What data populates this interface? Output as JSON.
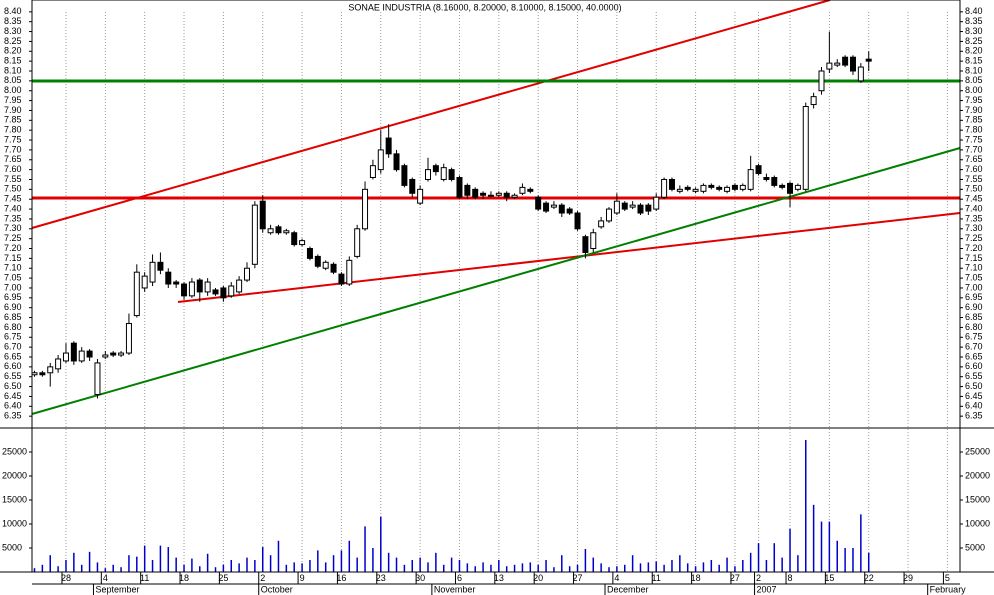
{
  "chart_data": {
    "type": "candlestick",
    "title": "SONAE INDUSTRIA (8.16000, 8.20000, 8.10000, 8.15000, 40.0000)",
    "categories": [
      null,
      null,
      null,
      null,
      "28",
      null,
      null,
      null,
      null,
      "4",
      null,
      null,
      null,
      null,
      "11",
      null,
      null,
      null,
      null,
      "18",
      null,
      null,
      null,
      null,
      "25",
      null,
      null,
      null,
      null,
      "2",
      null,
      null,
      null,
      null,
      "9",
      null,
      null,
      null,
      null,
      "16",
      null,
      null,
      null,
      null,
      "23",
      null,
      null,
      null,
      null,
      "30",
      null,
      null,
      null,
      null,
      "6",
      null,
      null,
      null,
      null,
      "13",
      null,
      null,
      null,
      null,
      "20",
      null,
      null,
      null,
      null,
      "27",
      null,
      null,
      null,
      null,
      "4",
      null,
      null,
      null,
      null,
      "11",
      null,
      null,
      null,
      null,
      "18",
      null,
      null,
      null,
      null,
      "27",
      null,
      null,
      "2",
      null,
      null,
      null,
      "8",
      null,
      null,
      null,
      null,
      "15",
      null,
      null,
      null,
      null,
      "22",
      null,
      null,
      null,
      null,
      "29",
      null,
      null,
      null,
      null,
      "5"
    ],
    "months": [
      "September",
      "October",
      "November",
      "December",
      "2007",
      "February"
    ],
    "open": [
      6.56,
      6.57,
      6.57,
      6.59,
      6.63,
      6.72,
      6.63,
      6.68,
      6.46,
      6.65,
      6.67,
      6.66,
      6.67,
      6.86,
      7.0,
      7.03,
      7.13,
      7.08,
      7.03,
      7.02,
      6.96,
      7.04,
      6.98,
      6.99,
      7.0,
      6.96,
      6.98,
      7.04,
      7.12,
      7.44,
      7.28,
      7.31,
      7.28,
      7.28,
      7.22,
      7.2,
      7.16,
      7.1,
      7.12,
      7.07,
      7.02,
      7.16,
      7.3,
      7.56,
      7.6,
      7.76,
      7.68,
      7.62,
      7.55,
      7.43,
      7.55,
      7.62,
      7.55,
      7.6,
      7.56,
      7.52,
      7.5,
      7.48,
      7.47,
      7.47,
      7.48,
      7.46,
      7.48,
      7.5,
      7.46,
      7.43,
      7.41,
      7.42,
      7.4,
      7.38,
      7.26,
      7.2,
      7.31,
      7.34,
      7.38,
      7.43,
      7.41,
      7.42,
      7.42,
      7.4,
      7.46,
      7.55,
      7.49,
      7.51,
      7.49,
      7.49,
      7.52,
      7.51,
      7.49,
      7.52,
      7.5,
      7.5,
      7.62,
      7.56,
      7.56,
      7.52,
      7.53,
      7.5,
      7.5,
      7.93,
      8.0,
      8.11,
      8.13,
      8.17,
      8.17,
      8.05,
      8.16,
      null,
      null,
      null,
      null,
      null,
      null,
      null,
      null,
      null,
      null
    ],
    "high": [
      6.58,
      6.58,
      6.62,
      6.66,
      6.72,
      6.73,
      6.7,
      6.69,
      6.64,
      6.68,
      6.68,
      6.68,
      6.87,
      7.12,
      7.08,
      7.17,
      7.18,
      7.1,
      7.04,
      7.03,
      7.05,
      7.05,
      7.05,
      7.0,
      7.01,
      7.03,
      7.06,
      7.13,
      7.44,
      7.47,
      7.32,
      7.32,
      7.3,
      7.29,
      7.25,
      7.21,
      7.17,
      7.14,
      7.13,
      7.08,
      7.16,
      7.32,
      7.54,
      7.65,
      7.8,
      7.83,
      7.7,
      7.63,
      7.56,
      7.52,
      7.66,
      7.63,
      7.63,
      7.61,
      7.57,
      7.53,
      7.51,
      7.49,
      7.49,
      7.49,
      7.49,
      7.48,
      7.53,
      7.51,
      7.47,
      7.44,
      7.44,
      7.43,
      7.41,
      7.39,
      7.27,
      7.3,
      7.36,
      7.41,
      7.48,
      7.44,
      7.44,
      7.43,
      7.43,
      7.48,
      7.56,
      7.56,
      7.52,
      7.52,
      7.51,
      7.53,
      7.53,
      7.52,
      7.52,
      7.53,
      7.53,
      7.67,
      7.63,
      7.58,
      7.57,
      7.53,
      7.54,
      7.53,
      7.94,
      7.99,
      8.12,
      8.3,
      8.16,
      8.18,
      8.18,
      8.14,
      8.2,
      null,
      null,
      null,
      null,
      null,
      null,
      null,
      null,
      null,
      null
    ],
    "low": [
      6.55,
      6.55,
      6.5,
      6.57,
      6.62,
      6.61,
      6.62,
      6.63,
      6.44,
      6.64,
      6.65,
      6.65,
      6.66,
      6.85,
      6.98,
      7.01,
      7.07,
      7.0,
      7.0,
      6.94,
      6.95,
      6.93,
      6.96,
      6.96,
      6.93,
      6.95,
      6.97,
      7.03,
      7.1,
      7.28,
      7.27,
      7.27,
      7.27,
      7.21,
      7.21,
      7.14,
      7.1,
      7.09,
      7.07,
      7.01,
      7.01,
      7.15,
      7.29,
      7.55,
      7.58,
      7.66,
      7.59,
      7.51,
      7.46,
      7.42,
      7.54,
      7.57,
      7.54,
      7.54,
      7.45,
      7.45,
      7.45,
      7.45,
      7.46,
      7.46,
      7.44,
      7.45,
      7.47,
      7.48,
      7.39,
      7.38,
      7.4,
      7.36,
      7.37,
      7.29,
      7.15,
      7.18,
      7.3,
      7.33,
      7.37,
      7.39,
      7.4,
      7.37,
      7.37,
      7.39,
      7.45,
      7.49,
      7.48,
      7.49,
      7.48,
      7.48,
      7.5,
      7.49,
      7.48,
      7.49,
      7.49,
      7.49,
      7.57,
      7.54,
      7.51,
      7.5,
      7.41,
      7.49,
      7.49,
      7.91,
      7.98,
      8.09,
      8.12,
      8.12,
      8.08,
      8.04,
      8.1,
      null,
      null,
      null,
      null,
      null,
      null,
      null,
      null,
      null,
      null
    ],
    "close": [
      6.57,
      6.56,
      6.6,
      6.64,
      6.67,
      6.63,
      6.68,
      6.65,
      6.62,
      6.66,
      6.66,
      6.67,
      6.82,
      7.08,
      7.06,
      7.13,
      7.09,
      7.02,
      7.02,
      6.96,
      7.03,
      6.98,
      7.03,
      6.97,
      6.95,
      7.01,
      7.04,
      7.1,
      7.42,
      7.3,
      7.3,
      7.28,
      7.29,
      7.22,
      7.24,
      7.15,
      7.11,
      7.13,
      7.08,
      7.02,
      7.14,
      7.3,
      7.5,
      7.62,
      7.7,
      7.68,
      7.6,
      7.52,
      7.48,
      7.5,
      7.6,
      7.59,
      7.61,
      7.55,
      7.46,
      7.47,
      7.46,
      7.47,
      7.47,
      7.48,
      7.46,
      7.47,
      7.51,
      7.49,
      7.4,
      7.39,
      7.42,
      7.38,
      7.38,
      7.3,
      7.18,
      7.28,
      7.34,
      7.4,
      7.44,
      7.4,
      7.42,
      7.38,
      7.39,
      7.46,
      7.55,
      7.5,
      7.5,
      7.5,
      7.5,
      7.52,
      7.51,
      7.5,
      7.51,
      7.5,
      7.52,
      7.6,
      7.58,
      7.55,
      7.52,
      7.51,
      7.48,
      7.52,
      7.92,
      7.97,
      8.1,
      8.14,
      8.14,
      8.13,
      8.1,
      8.12,
      8.15,
      null,
      null,
      null,
      null,
      null,
      null,
      null,
      null,
      null,
      null
    ],
    "up_color": "#ffffff",
    "down_color": "#000000",
    "ylim": [
      6.29,
      8.46
    ],
    "yticks": [
      6.35,
      {
        "value": 6.4,
        "label": "6.40"
      },
      6.45,
      {
        "value": 6.5,
        "label": "6.50"
      },
      6.55,
      {
        "value": 6.6,
        "label": "6.60"
      },
      6.65,
      {
        "value": 6.7,
        "label": "6.70"
      },
      6.75,
      {
        "value": 6.8,
        "label": "6.80"
      },
      6.85,
      {
        "value": 6.9,
        "label": "6.90"
      },
      6.95,
      {
        "value": 7,
        "label": "7.00"
      },
      7.05,
      {
        "value": 7.1,
        "label": "7.10"
      },
      7.15,
      {
        "value": 7.2,
        "label": "7.20"
      },
      7.25,
      {
        "value": 7.3,
        "label": "7.30"
      },
      7.35,
      {
        "value": 7.4,
        "label": "7.40"
      },
      7.45,
      {
        "value": 7.5,
        "label": "7.50"
      },
      7.55,
      {
        "value": 7.6,
        "label": "7.60"
      },
      7.65,
      {
        "value": 7.7,
        "label": "7.70"
      },
      7.75,
      {
        "value": 7.8,
        "label": "7.80"
      },
      7.85,
      {
        "value": 7.9,
        "label": "7.90"
      },
      7.95,
      {
        "value": 8,
        "label": "8.00"
      },
      8.05,
      {
        "value": 8.1,
        "label": "8.10"
      },
      8.15,
      {
        "value": 8.2,
        "label": "8.20"
      },
      8.25,
      {
        "value": 8.3,
        "label": "8.30"
      },
      8.35,
      {
        "value": 8.4,
        "label": "8.40"
      }
    ],
    "volume": {
      "type": "bar",
      "color": "#0000cc",
      "values": [
        800,
        1500,
        3500,
        1200,
        2500,
        4000,
        1500,
        4200,
        2000,
        800,
        1500,
        1000,
        3500,
        3200,
        5500,
        2500,
        5500,
        5200,
        3000,
        1500,
        2800,
        1200,
        3800,
        1000,
        1500,
        2500,
        1800,
        3000,
        2500,
        5200,
        3500,
        6500,
        1500,
        2000,
        1800,
        2500,
        4500,
        2000,
        3500,
        4500,
        6500,
        3000,
        9500,
        5000,
        11500,
        4000,
        3000,
        1500,
        2500,
        3000,
        2000,
        4000,
        1500,
        3000,
        2500,
        1800,
        1200,
        2000,
        1500,
        2500,
        1200,
        1500,
        1800,
        2000,
        1500,
        2500,
        1000,
        3500,
        1200,
        1500,
        4800,
        3000,
        1800,
        1000,
        1200,
        1500,
        3500,
        1800,
        2000,
        2200,
        1500,
        2500,
        3500,
        1800,
        1200,
        2000,
        2500,
        1500,
        3000,
        1200,
        2500,
        4000,
        6000,
        2500,
        6000,
        3000,
        9000,
        3500,
        27500,
        14000,
        10500,
        10500,
        6500,
        5000,
        5000,
        12000,
        4000,
        null,
        null,
        null,
        null,
        null,
        null,
        null,
        null,
        null,
        null
      ],
      "ylim": [
        0,
        30000
      ],
      "yticks": [
        5000,
        10000,
        15000,
        20000,
        25000
      ]
    }
  }
}
